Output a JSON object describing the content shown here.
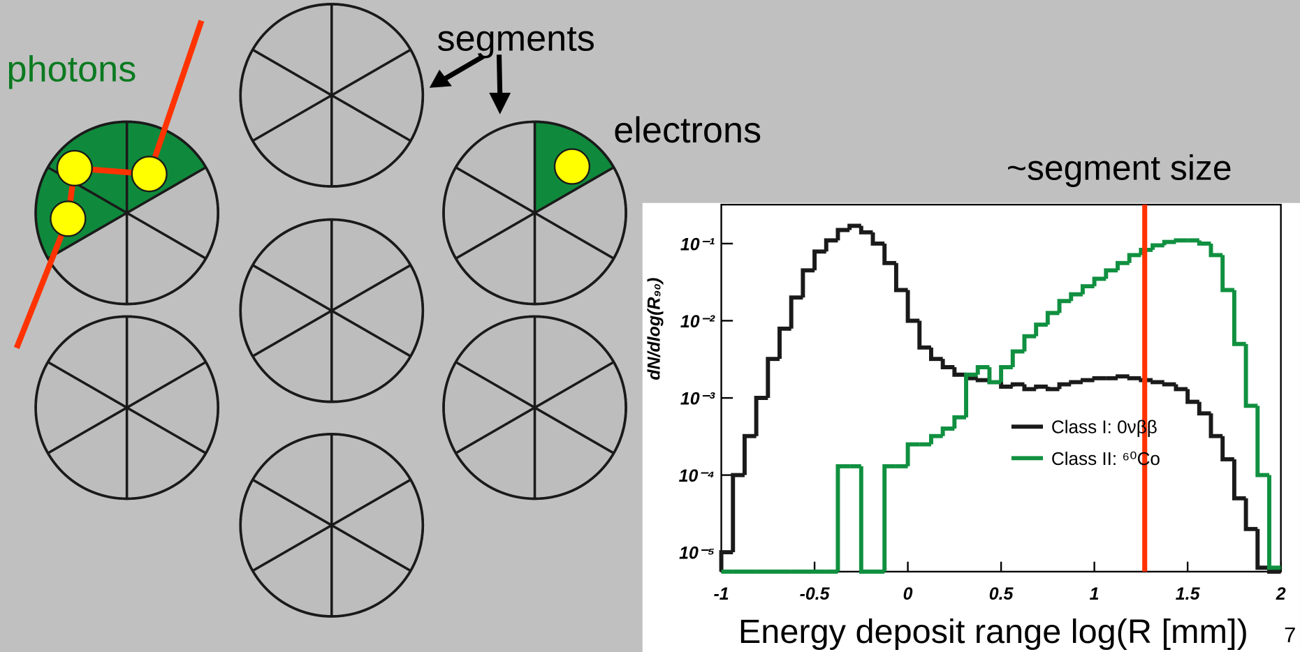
{
  "slide": {
    "photons": "photons",
    "segments": "segments",
    "electrons": "electrons",
    "page_number": "7"
  },
  "chart_data": {
    "type": "histogram",
    "log_y": true,
    "grid": false,
    "legend": "right",
    "annotation": "~segment size",
    "marker_x": 1.27,
    "marker_color": "#ff3300",
    "xlabel": "Energy deposit range log(R [mm])",
    "ylabel": "dN/dlog(R₉₀)",
    "xlim": [
      -1,
      2
    ],
    "xticks": [
      -1,
      -0.5,
      0,
      0.5,
      1,
      1.5,
      2
    ],
    "ylim": [
      5.6e-06,
      0.32
    ],
    "yticks": [
      {
        "value": 0.1,
        "label": "10⁻¹"
      },
      {
        "value": 0.01,
        "label": "10⁻²"
      },
      {
        "value": 0.001,
        "label": "10⁻³"
      },
      {
        "value": 0.0001,
        "label": "10⁻⁴"
      },
      {
        "value": 1e-05,
        "label": "10⁻⁵"
      }
    ],
    "bins": [
      -1,
      -0.9375,
      -0.875,
      -0.8125,
      -0.75,
      -0.6875,
      -0.625,
      -0.5625,
      -0.5,
      -0.4375,
      -0.375,
      -0.3125,
      -0.25,
      -0.1875,
      -0.125,
      -0.0625,
      0,
      0.0625,
      0.125,
      0.1875,
      0.25,
      0.3125,
      0.375,
      0.4375,
      0.5,
      0.5625,
      0.625,
      0.6875,
      0.75,
      0.8125,
      0.875,
      0.9375,
      1,
      1.0625,
      1.125,
      1.1875,
      1.25,
      1.3125,
      1.375,
      1.4375,
      1.5,
      1.5625,
      1.625,
      1.6875,
      1.75,
      1.8125,
      1.875,
      1.9375,
      2
    ],
    "series": [
      {
        "name": "Class I: 0νββ",
        "color": "#1a1a1a",
        "values": [
          1e-05,
          0.0001,
          0.00032,
          0.001,
          0.0032,
          0.0079,
          0.02,
          0.045,
          0.079,
          0.11,
          0.15,
          0.17,
          0.14,
          0.1,
          0.056,
          0.025,
          0.01,
          0.0045,
          0.0032,
          0.0025,
          0.002,
          0.0018,
          0.0017,
          0.0016,
          0.0014,
          0.0015,
          0.0013,
          0.0014,
          0.0013,
          0.0015,
          0.0016,
          0.0017,
          0.0018,
          0.0018,
          0.0019,
          0.0018,
          0.0017,
          0.0016,
          0.0015,
          0.0013,
          0.00089,
          0.00063,
          0.00032,
          0.00016,
          5e-05,
          2e-05,
          6.3e-06,
          0
        ]
      },
      {
        "name": "Class II: ⁶⁰Co",
        "color": "#109040",
        "values": [
          0,
          0,
          0,
          0,
          0,
          0,
          0,
          0,
          0,
          0,
          0.00013,
          0.00013,
          0,
          0,
          0.00013,
          0.00013,
          0.00025,
          0.00025,
          0.00032,
          0.0004,
          0.00056,
          0.002,
          0.0025,
          0.0016,
          0.0025,
          0.004,
          0.0063,
          0.0089,
          0.0126,
          0.018,
          0.022,
          0.028,
          0.035,
          0.045,
          0.056,
          0.071,
          0.083,
          0.095,
          0.105,
          0.11,
          0.11,
          0.1,
          0.071,
          0.025,
          0.005,
          0.00079,
          0.0001,
          6.3e-06
        ]
      }
    ]
  }
}
